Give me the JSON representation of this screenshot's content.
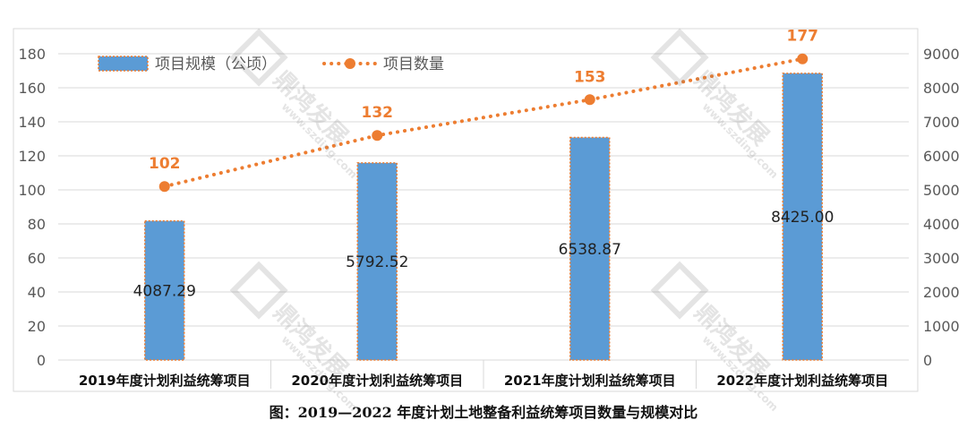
{
  "caption": "图：2019—2022 年度计划土地整备利益统筹项目数量与规模对比",
  "watermark": {
    "text": "鼎鸿发展",
    "url": "www.szding.com"
  },
  "colors": {
    "bar": "#5b9bd5",
    "bar_outline": "#ed7d31",
    "line": "#ed7d31",
    "grid": "#d9d9d9",
    "text": "#595959"
  },
  "chart_data": {
    "type": "bar",
    "categories": [
      "2019年度计划利益统筹项目",
      "2020年度计划利益统筹项目",
      "2021年度计划利益统筹项目",
      "2022年度计划利益统筹项目"
    ],
    "series": [
      {
        "name": "项目规模（公顷）",
        "type": "bar",
        "axis": "right",
        "values": [
          4087.29,
          5792.52,
          6538.87,
          8425.0
        ],
        "labels": [
          "4087.29",
          "5792.52",
          "6538.87",
          "8425.00"
        ]
      },
      {
        "name": "项目数量",
        "type": "line",
        "axis": "left",
        "values": [
          102,
          132,
          153,
          177
        ],
        "labels": [
          "102",
          "132",
          "153",
          "177"
        ]
      }
    ],
    "y_left": {
      "min": 0,
      "max": 180,
      "step": 20
    },
    "y_right": {
      "min": 0,
      "max": 9000,
      "step": 1000
    },
    "grid": true,
    "legend": "top-left"
  }
}
